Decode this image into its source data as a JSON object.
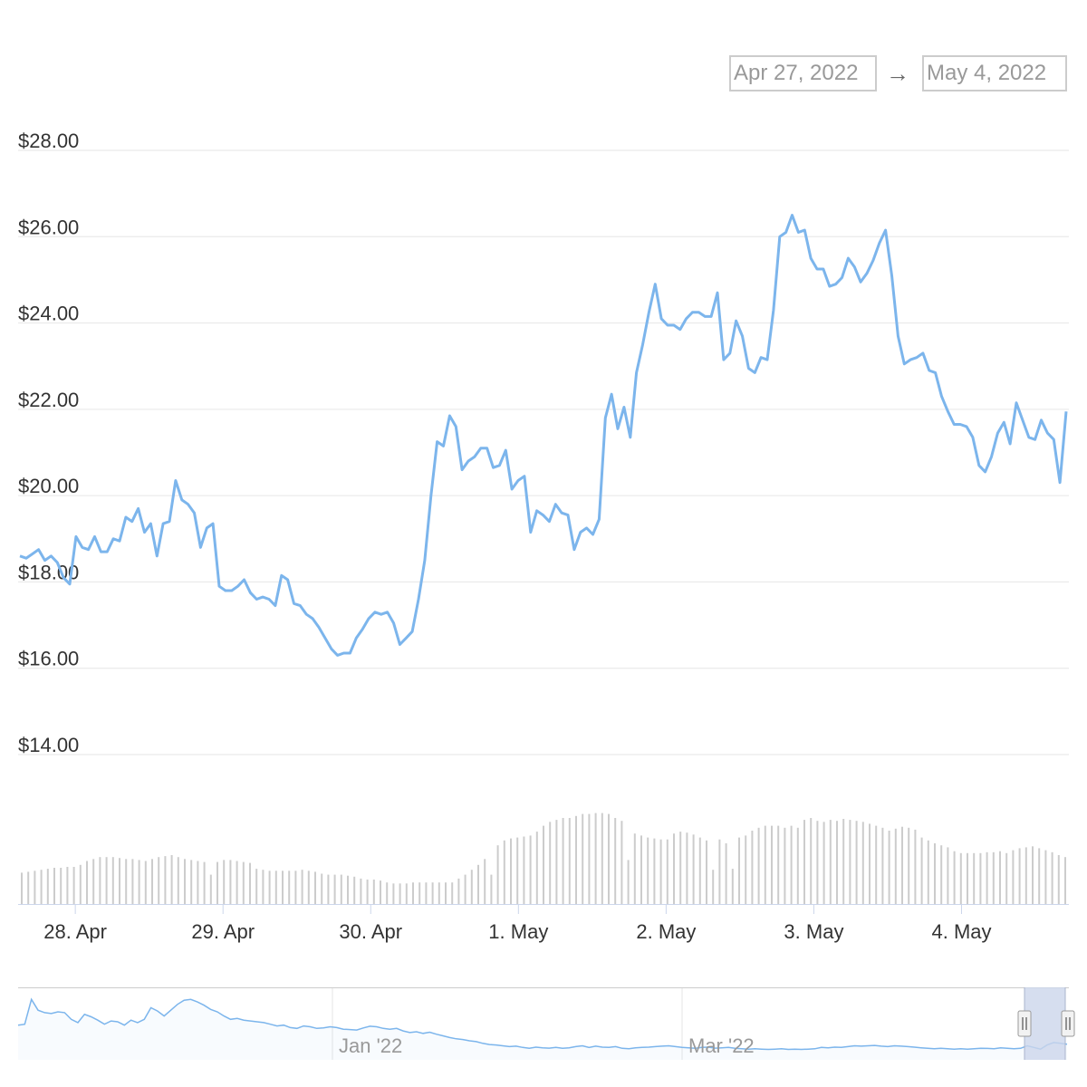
{
  "range_selector": {
    "from": "Apr 27, 2022",
    "arrow": "→",
    "to": "May 4, 2022"
  },
  "chart_data": {
    "type": "line",
    "title": "",
    "xlabel": "",
    "ylabel": "",
    "y_ticks": [
      "$14.00",
      "$16.00",
      "$18.00",
      "$20.00",
      "$22.00",
      "$24.00",
      "$26.00",
      "$28.00"
    ],
    "ylim": [
      14,
      28
    ],
    "x_ticks": [
      "28. Apr",
      "29. Apr",
      "30. Apr",
      "1. May",
      "2. May",
      "3. May",
      "4. May"
    ],
    "x_range": [
      "2022-04-27T15:00",
      "2022-05-04T17:00"
    ],
    "grid": true,
    "series": [
      {
        "values": [
          18.6,
          18.55,
          18.65,
          18.75,
          18.5,
          18.6,
          18.45,
          18.1,
          17.95,
          19.05,
          18.8,
          18.75,
          19.05,
          18.7,
          18.7,
          19.0,
          18.95,
          19.5,
          19.4,
          19.7,
          19.15,
          19.35,
          18.6,
          19.35,
          19.4,
          20.35,
          19.9,
          19.8,
          19.6,
          18.8,
          19.25,
          19.35,
          17.9,
          17.8,
          17.8,
          17.9,
          18.05,
          17.75,
          17.6,
          17.65,
          17.6,
          17.45,
          18.15,
          18.05,
          17.5,
          17.45,
          17.25,
          17.15,
          16.95,
          16.7,
          16.45,
          16.3,
          16.35,
          16.35,
          16.7,
          16.9,
          17.15,
          17.3,
          17.25,
          17.3,
          17.05,
          16.55,
          16.7,
          16.85,
          17.6,
          18.5,
          20.0,
          21.25,
          21.15,
          21.85,
          21.6,
          20.6,
          20.8,
          20.9,
          21.1,
          21.1,
          20.65,
          20.7,
          21.05,
          20.15,
          20.35,
          20.45,
          19.15,
          19.65,
          19.55,
          19.4,
          19.8,
          19.6,
          19.55,
          18.75,
          19.15,
          19.25,
          19.1,
          19.45,
          21.8,
          22.35,
          21.55,
          22.05,
          21.35,
          22.85,
          23.5,
          24.25,
          24.9,
          24.1,
          23.95,
          23.95,
          23.85,
          24.1,
          24.25,
          24.25,
          24.15,
          24.15,
          24.7,
          23.15,
          23.3,
          24.05,
          23.7,
          22.95,
          22.85,
          23.2,
          23.15,
          24.3,
          26.0,
          26.1,
          26.5,
          26.1,
          26.15,
          25.5,
          25.25,
          25.25,
          24.85,
          24.9,
          25.05,
          25.5,
          25.3,
          24.95,
          25.15,
          25.45,
          25.85,
          26.15,
          25.1,
          23.7,
          23.05,
          23.15,
          23.2,
          23.3,
          22.9,
          22.85,
          22.3,
          21.95,
          21.65,
          21.65,
          21.6,
          21.35,
          20.7,
          20.55,
          20.9,
          21.45,
          21.7,
          21.2,
          22.15,
          21.75,
          21.35,
          21.3,
          21.75,
          21.45,
          21.3,
          20.3,
          21.95
        ]
      }
    ],
    "volume_values": [
      32,
      33,
      34,
      35,
      36,
      37,
      37,
      38,
      38,
      40,
      44,
      46,
      48,
      48,
      48,
      47,
      46,
      46,
      45,
      44,
      46,
      48,
      49,
      50,
      48,
      46,
      45,
      44,
      43,
      30,
      43,
      45,
      45,
      44,
      43,
      42,
      36,
      35,
      34,
      34,
      34,
      34,
      34,
      35,
      34,
      33,
      31,
      30,
      30,
      30,
      29,
      28,
      26,
      25,
      25,
      24,
      22,
      21,
      21,
      21,
      22,
      22,
      22,
      22,
      22,
      22,
      22,
      26,
      30,
      35,
      40,
      46,
      30,
      60,
      65,
      67,
      68,
      69,
      70,
      74,
      80,
      84,
      86,
      88,
      88,
      90,
      92,
      92,
      93,
      93,
      92,
      88,
      85,
      45,
      72,
      70,
      68,
      67,
      66,
      66,
      72,
      74,
      73,
      71,
      68,
      65,
      35,
      66,
      62,
      36,
      68,
      70,
      75,
      78,
      80,
      80,
      80,
      78,
      80,
      78,
      86,
      88,
      85,
      84,
      86,
      85,
      87,
      86,
      85,
      84,
      82,
      80,
      78,
      75,
      77,
      79,
      78,
      76,
      68,
      65,
      62,
      60,
      58,
      54,
      52,
      52,
      52,
      52,
      53,
      53,
      54,
      52,
      55,
      57,
      58,
      59,
      57,
      55,
      53,
      50,
      48
    ],
    "navigator": {
      "x_ticks": [
        "Jan '22",
        "Mar '22"
      ],
      "values": [
        1.55,
        1.6,
        3.1,
        2.45,
        2.3,
        2.25,
        2.35,
        2.3,
        1.9,
        1.7,
        2.2,
        2.05,
        1.85,
        1.6,
        1.8,
        1.75,
        1.55,
        1.85,
        1.7,
        1.9,
        2.6,
        2.4,
        2.1,
        2.45,
        2.8,
        3.05,
        3.1,
        2.95,
        2.75,
        2.5,
        2.35,
        2.1,
        1.9,
        1.95,
        1.85,
        1.8,
        1.75,
        1.7,
        1.6,
        1.5,
        1.55,
        1.4,
        1.35,
        1.5,
        1.45,
        1.35,
        1.38,
        1.45,
        1.4,
        1.3,
        1.28,
        1.25,
        1.38,
        1.48,
        1.45,
        1.35,
        1.3,
        1.35,
        1.2,
        1.1,
        1.15,
        1.05,
        1.12,
        1.0,
        0.9,
        0.8,
        0.72,
        0.68,
        0.6,
        0.55,
        0.45,
        0.38,
        0.35,
        0.3,
        0.25,
        0.28,
        0.2,
        0.15,
        0.22,
        0.18,
        0.16,
        0.2,
        0.15,
        0.18,
        0.25,
        0.3,
        0.2,
        0.28,
        0.22,
        0.2,
        0.25,
        0.15,
        0.12,
        0.18,
        0.2,
        0.22,
        0.25,
        0.28,
        0.3,
        0.25,
        0.2,
        0.18,
        0.15,
        0.2,
        0.22,
        0.16,
        0.18,
        0.2,
        0.15,
        0.12,
        0.1,
        0.12,
        0.1,
        0.08,
        0.1,
        0.12,
        0.08,
        0.1,
        0.08,
        0.1,
        0.12,
        0.2,
        0.18,
        0.22,
        0.2,
        0.25,
        0.3,
        0.28,
        0.3,
        0.32,
        0.28,
        0.25,
        0.3,
        0.28,
        0.25,
        0.22,
        0.18,
        0.15,
        0.12,
        0.15,
        0.12,
        0.1,
        0.12,
        0.1,
        0.12,
        0.15,
        0.14,
        0.12,
        0.18,
        0.15,
        0.12,
        0.15,
        0.3,
        0.2,
        0.1,
        0.35,
        0.5,
        0.45,
        0.4
      ]
    }
  },
  "colors": {
    "line": "#7cb5ec",
    "grid": "#e6e6e6",
    "volume_bar": "#cccccc",
    "navigator_mask": "#ccd6eb"
  }
}
